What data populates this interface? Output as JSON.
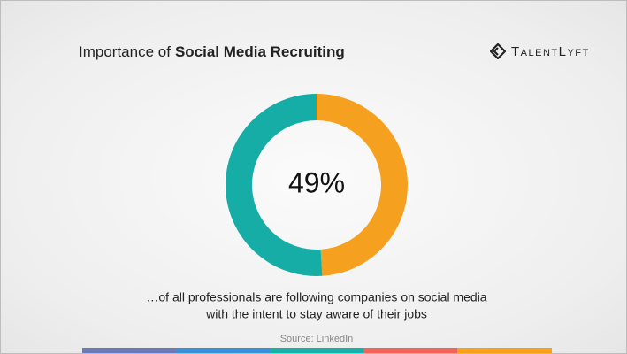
{
  "chart_data": {
    "type": "pie",
    "donut": true,
    "title": "Importance of",
    "title_bold": "Social Media Recruiting",
    "brand": "TalentLyft",
    "categories": [
      null,
      null
    ],
    "series": [
      {
        "colors": [
          "#f5a11f",
          "#15ada6"
        ],
        "values": [
          49,
          51
        ],
        "value_labels": [
          "49%",
          null
        ]
      }
    ],
    "caption": [
      "…of all professionals are following companies on social media",
      "with the intent to stay aware of their jobs"
    ],
    "source": "Source: LinkedIn"
  }
}
